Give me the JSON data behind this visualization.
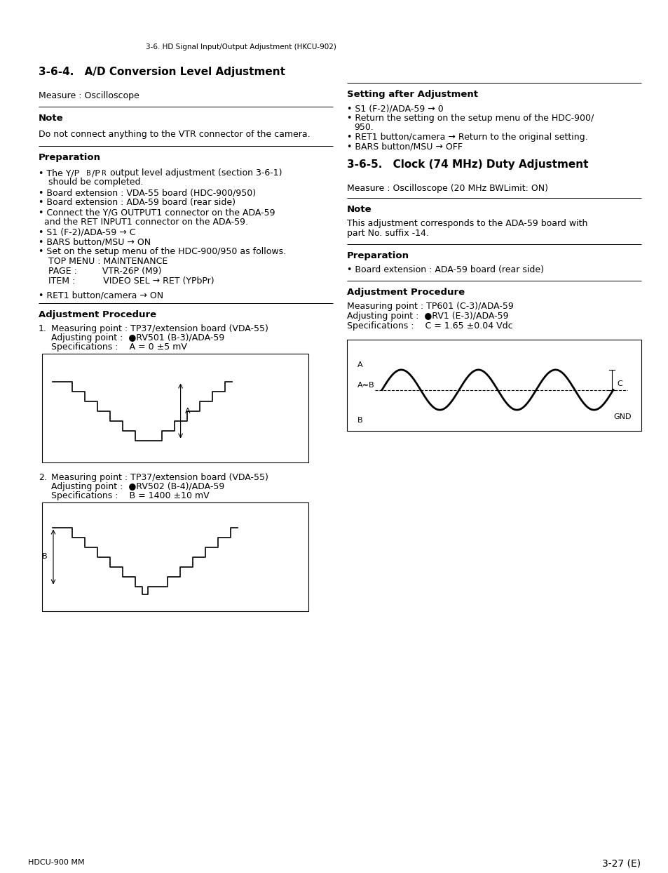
{
  "page_header": "3-6. HD Signal Input/Output Adjustment (HKCU-902)",
  "page_footer_left": "HDCU-900 MM",
  "page_footer_right": "3-27 (E)",
  "background_color": "#ffffff",
  "text_color": "#000000",
  "left_col": {
    "title": "3-6-4. A/D Conversion Level Adjustment",
    "measure_line": "Measure : Oscilloscope",
    "note_header": "Note",
    "note_text": "Do not connect anything to the VTR connector of the camera.",
    "prep_header": "Preparation",
    "prep_bullets": [
      "The Y/PB/PR output level adjustment (section 3-6-1)\nshould be completed.",
      "Board extension : VDA-55 board (HDC-900/950)",
      "Board extension : ADA-59 board (rear side)",
      "Connect the Y/G OUTPUT1 connector on the ADA-59\nand the RET INPUT1 connector on the ADA-59.",
      "S1 (F-2)/ADA-59 → C",
      "BARS button/MSU → ON",
      "Set on the setup menu of the HDC-900/950 as follows.\n    TOP MENU : MAINTENANCE\n    PAGE :         VTR-26P (M9)\n    ITEM :          VIDEO SEL → RET (YPbPr)",
      "RET1 button/camera → ON"
    ],
    "adj_header": "Adjustment Procedure",
    "adj_items": [
      {
        "num": "1.",
        "line1": "Measuring point : TP37/extension board (VDA-55)",
        "line2": "Adjusting point :  ●RV501 (B-3)/ADA-59",
        "line3": "Specifications :    A = 0 ±5 mV"
      },
      {
        "num": "2.",
        "line1": "Measuring point : TP37/extension board (VDA-55)",
        "line2": "Adjusting point :  ●RV502 (B-4)/ADA-59",
        "line3": "Specifications :    B = 1400 ±10 mV"
      }
    ]
  },
  "right_col": {
    "setting_header": "Setting after Adjustment",
    "setting_bullets": [
      "S1 (F-2)/ADA-59 → 0",
      "Return the setting on the setup menu of the HDC-900/\n950.",
      "RET1 button/camera → Return to the original setting.",
      "BARS button/MSU → OFF"
    ],
    "title": "3-6-5. Clock (74 MHz) Duty Adjustment",
    "measure_line": "Measure : Oscilloscope (20 MHz BWLimit: ON)",
    "note_header": "Note",
    "note_text": "This adjustment corresponds to the ADA-59 board with\npart No. suffix -14.",
    "prep_header": "Preparation",
    "prep_bullets": [
      "Board extension : ADA-59 board (rear side)"
    ],
    "adj_header": "Adjustment Procedure",
    "adj_lines": [
      "Measuring point : TP601 (C-3)/ADA-59",
      "Adjusting point :  ●RV1 (E-3)/ADA-59",
      "Specifications :    C = 1.65 ±0.04 Vdc"
    ]
  }
}
